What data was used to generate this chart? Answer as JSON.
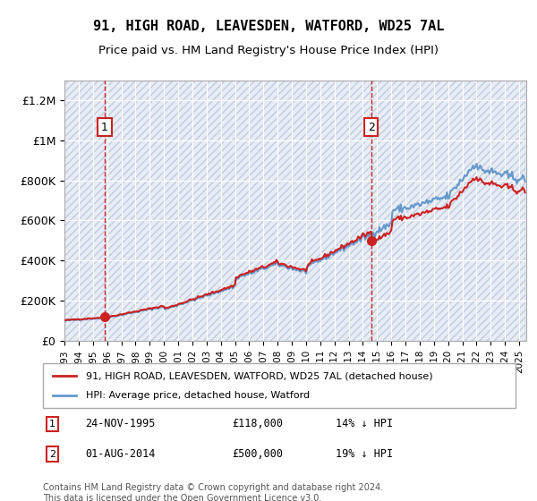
{
  "title": "91, HIGH ROAD, LEAVESDEN, WATFORD, WD25 7AL",
  "subtitle": "Price paid vs. HM Land Registry's House Price Index (HPI)",
  "ylim": [
    0,
    1300000
  ],
  "yticks": [
    0,
    200000,
    400000,
    600000,
    800000,
    1000000,
    1200000
  ],
  "ytick_labels": [
    "£0",
    "£200K",
    "£400K",
    "£600K",
    "£800K",
    "£1M",
    "£1.2M"
  ],
  "sale1_date": "1995-11-24",
  "sale1_price": 118000,
  "sale1_label": "1",
  "sale2_date": "2014-08-01",
  "sale2_price": 500000,
  "sale2_label": "2",
  "hpi_color": "#6699cc",
  "price_color": "#cc2222",
  "marker_color": "#cc2222",
  "vline_color": "#cc2222",
  "bg_hatch_color": "#d0d8e8",
  "bg_face_color": "#e8edf5",
  "legend_label_price": "91, HIGH ROAD, LEAVESDEN, WATFORD, WD25 7AL (detached house)",
  "legend_label_hpi": "HPI: Average price, detached house, Watford",
  "annotation1": "1   24-NOV-1995       £118,000       14% ↓ HPI",
  "annotation2": "2   01-AUG-2014       £500,000       19% ↓ HPI",
  "footer": "Contains HM Land Registry data © Crown copyright and database right 2024.\nThis data is licensed under the Open Government Licence v3.0.",
  "xstart": 1993.0,
  "xend": 2025.5
}
